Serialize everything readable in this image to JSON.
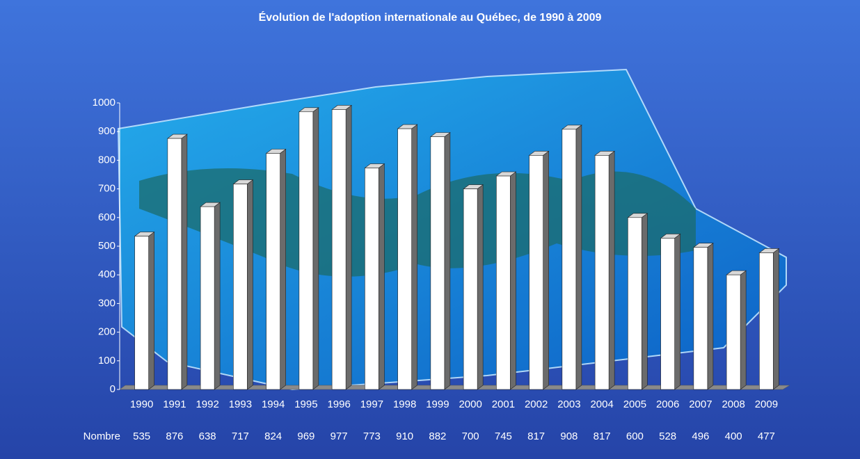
{
  "chart_data": {
    "type": "bar3d",
    "title": "Évolution de l'adoption internationale au Québec, de 1990 à 2009",
    "categories": [
      "1990",
      "1991",
      "1992",
      "1993",
      "1994",
      "1995",
      "1996",
      "1997",
      "1998",
      "1999",
      "2000",
      "2001",
      "2002",
      "2003",
      "2004",
      "2005",
      "2006",
      "2007",
      "2008",
      "2009"
    ],
    "series": [
      {
        "name": "Nombre",
        "color": "#ffffff",
        "values": [
          535,
          876,
          638,
          717,
          824,
          969,
          977,
          773,
          910,
          882,
          700,
          745,
          817,
          908,
          817,
          600,
          528,
          496,
          400,
          477
        ]
      }
    ],
    "ylim": [
      0,
      1000
    ],
    "yticks": [
      0,
      100,
      200,
      300,
      400,
      500,
      600,
      700,
      800,
      900,
      1000
    ],
    "data_table": true
  }
}
